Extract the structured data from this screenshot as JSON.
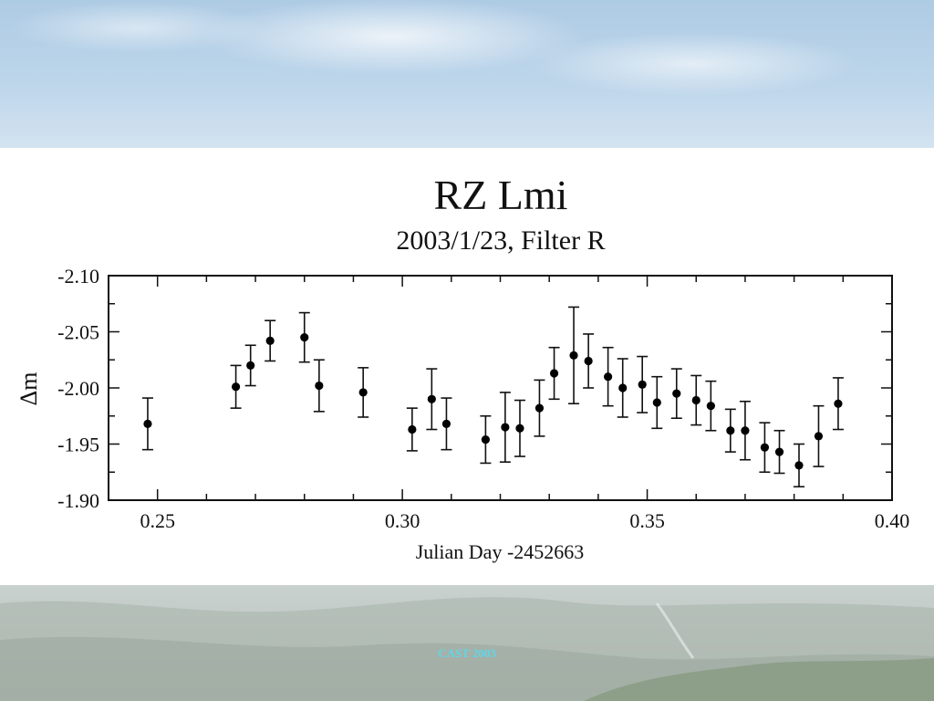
{
  "chart_data": {
    "type": "scatter",
    "title": "RZ Lmi",
    "subtitle": "2003/1/23, Filter R",
    "xlabel": "Julian Day -2452663",
    "ylabel": "Δm",
    "xlim": [
      0.24,
      0.4
    ],
    "ylim": [
      -1.9,
      -2.1
    ],
    "y_inverted": true,
    "xticks": [
      0.25,
      0.3,
      0.35,
      0.4
    ],
    "xtick_labels": [
      "0.25",
      "0.30",
      "0.35",
      "0.40"
    ],
    "yticks": [
      -2.1,
      -2.05,
      -2.0,
      -1.95,
      -1.9
    ],
    "ytick_labels": [
      "-2.10",
      "-2.05",
      "-2.00",
      "-1.95",
      "-1.90"
    ],
    "grid": false,
    "error_bars": true,
    "series": [
      {
        "x": [
          0.248,
          0.266,
          0.269,
          0.273,
          0.28,
          0.283,
          0.292,
          0.302,
          0.306,
          0.309,
          0.317,
          0.321,
          0.324,
          0.328,
          0.331,
          0.335,
          0.338,
          0.342,
          0.345,
          0.349,
          0.352,
          0.356,
          0.36,
          0.363,
          0.367,
          0.37,
          0.374,
          0.377,
          0.381,
          0.385,
          0.389
        ],
        "y": [
          -1.968,
          -2.001,
          -2.02,
          -2.042,
          -2.045,
          -2.002,
          -1.996,
          -1.963,
          -1.99,
          -1.968,
          -1.954,
          -1.965,
          -1.964,
          -1.982,
          -2.013,
          -2.029,
          -2.024,
          -2.01,
          -2.0,
          -2.003,
          -1.987,
          -1.995,
          -1.989,
          -1.984,
          -1.962,
          -1.962,
          -1.947,
          -1.943,
          -1.931,
          -1.957,
          -1.986
        ],
        "yerr": [
          0.023,
          0.019,
          0.018,
          0.018,
          0.022,
          0.023,
          0.022,
          0.019,
          0.027,
          0.023,
          0.021,
          0.031,
          0.025,
          0.025,
          0.023,
          0.043,
          0.024,
          0.026,
          0.026,
          0.025,
          0.023,
          0.022,
          0.022,
          0.022,
          0.019,
          0.026,
          0.022,
          0.019,
          0.019,
          0.027,
          0.023
        ]
      }
    ]
  },
  "footer": {
    "text": "CAST 2003"
  }
}
